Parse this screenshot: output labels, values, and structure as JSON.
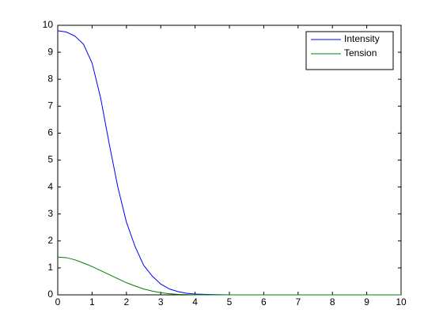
{
  "chart_data": {
    "type": "line",
    "x": [
      0,
      0.25,
      0.5,
      0.75,
      1,
      1.25,
      1.5,
      1.75,
      2,
      2.25,
      2.5,
      2.75,
      3,
      3.25,
      3.5,
      3.75,
      4,
      4.5,
      5,
      6,
      7,
      8,
      9,
      10
    ],
    "series": [
      {
        "name": "Intensity",
        "color": "#0000ff",
        "values": [
          9.8,
          9.75,
          9.6,
          9.3,
          8.6,
          7.3,
          5.6,
          4.0,
          2.7,
          1.8,
          1.1,
          0.7,
          0.4,
          0.22,
          0.12,
          0.06,
          0.03,
          0.01,
          0,
          0,
          0,
          0,
          0,
          0
        ]
      },
      {
        "name": "Tension",
        "color": "#008000",
        "values": [
          1.4,
          1.38,
          1.3,
          1.18,
          1.05,
          0.9,
          0.75,
          0.6,
          0.45,
          0.33,
          0.22,
          0.14,
          0.08,
          0.04,
          0.02,
          0.01,
          0,
          0,
          0,
          0,
          0,
          0,
          0,
          0
        ]
      }
    ],
    "xlim": [
      0,
      10
    ],
    "ylim": [
      0,
      10
    ],
    "xticks": [
      0,
      1,
      2,
      3,
      4,
      5,
      6,
      7,
      8,
      9,
      10
    ],
    "yticks": [
      0,
      1,
      2,
      3,
      4,
      5,
      6,
      7,
      8,
      9,
      10
    ],
    "legend": "northeast"
  }
}
